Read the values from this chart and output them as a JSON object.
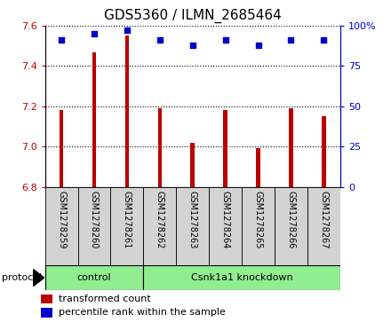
{
  "title": "GDS5360 / ILMN_2685464",
  "samples": [
    "GSM1278259",
    "GSM1278260",
    "GSM1278261",
    "GSM1278262",
    "GSM1278263",
    "GSM1278264",
    "GSM1278265",
    "GSM1278266",
    "GSM1278267"
  ],
  "bar_values": [
    7.18,
    7.47,
    7.55,
    7.19,
    7.02,
    7.18,
    6.99,
    7.19,
    7.15
  ],
  "percentile_values": [
    91,
    95,
    97,
    91,
    88,
    91,
    88,
    91,
    91
  ],
  "bar_color": "#bb0000",
  "dot_color": "#0000cc",
  "y_min": 6.8,
  "y_max": 7.6,
  "y_ticks_left": [
    6.8,
    7.0,
    7.2,
    7.4,
    7.6
  ],
  "y_ticks_right": [
    0,
    25,
    50,
    75,
    100
  ],
  "control_samples": 3,
  "control_label": "control",
  "treatment_label": "Csnk1a1 knockdown",
  "group_color": "#90ee90",
  "protocol_label": "protocol",
  "legend_bar_label": "transformed count",
  "legend_dot_label": "percentile rank within the sample",
  "sample_box_color": "#d3d3d3",
  "plot_background": "#ffffff",
  "title_fontsize": 11,
  "tick_fontsize": 8,
  "sample_fontsize": 7,
  "legend_fontsize": 8
}
